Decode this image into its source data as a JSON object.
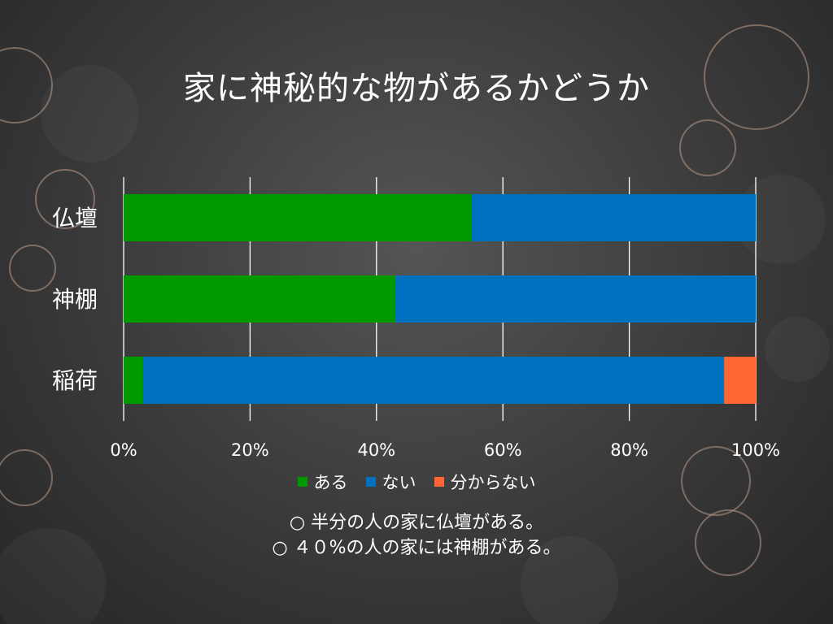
{
  "slide": {
    "notes": [
      "○ 半分の人の家に仏壇がある。",
      "○ ４０%の人の家には神棚がある。"
    ]
  },
  "chart_data": {
    "type": "bar",
    "orientation": "horizontal",
    "stacked": true,
    "title": "家に神秘的な物があるかどうか",
    "categories": [
      "仏壇",
      "神棚",
      "稲荷"
    ],
    "series": [
      {
        "name": "ある",
        "color": "#009900",
        "values": [
          55,
          43,
          3
        ]
      },
      {
        "name": "ない",
        "color": "#0070C0",
        "values": [
          45,
          57,
          92
        ]
      },
      {
        "name": "分からない",
        "color": "#FF6633",
        "values": [
          0,
          0,
          5
        ]
      }
    ],
    "xlim": [
      0,
      100
    ],
    "xticks": [
      "0%",
      "20%",
      "40%",
      "60%",
      "80%",
      "100%"
    ],
    "grid": true,
    "legend": "bottom"
  }
}
